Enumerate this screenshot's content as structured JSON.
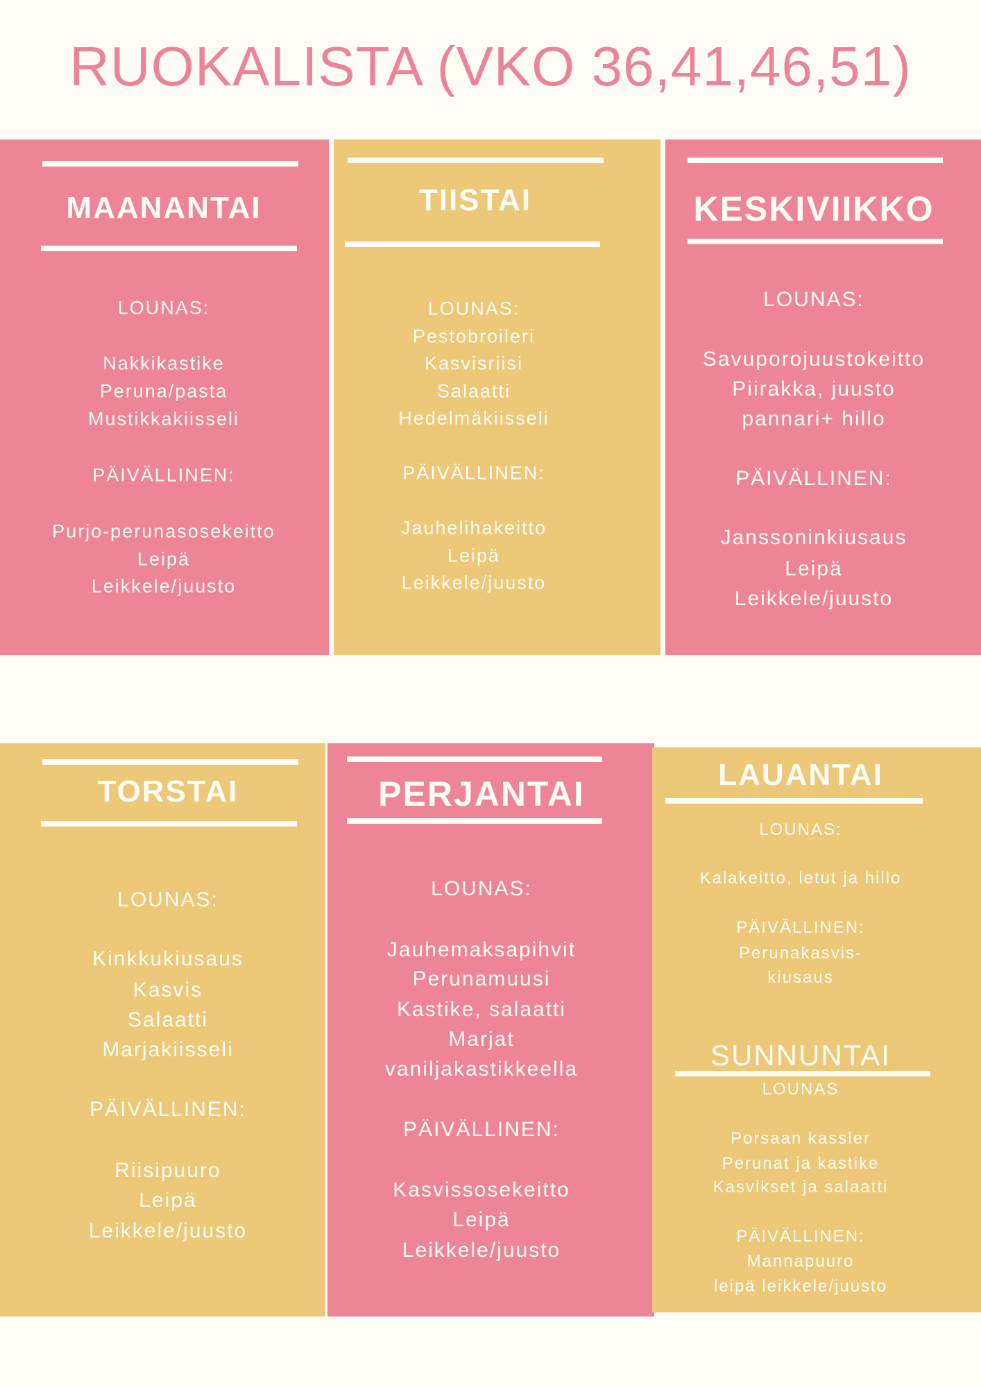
{
  "title": "RUOKALISTA (VKO 36,41,46,51)",
  "colors": {
    "pink": "#ED8597",
    "yellow": "#ECC878",
    "background": "#FEFDF5",
    "text": "#FEFDF5"
  },
  "days": [
    {
      "name": "MAANANTAI",
      "lunch_label": "LOUNAS:",
      "lunch": [
        "Nakkikastike",
        "Peruna/pasta",
        "Mustikkakiisseli"
      ],
      "dinner_label": "PÄIVÄLLINEN:",
      "dinner": [
        "Purjo-perunasosekeitto",
        "Leipä",
        "Leikkele/juusto"
      ]
    },
    {
      "name": "TIISTAI",
      "lunch_label": "LOUNAS:",
      "lunch": [
        "Pestobroileri",
        "Kasvisriisi",
        "Salaatti",
        "Hedelmäkiisseli"
      ],
      "dinner_label": "PÄIVÄLLINEN:",
      "dinner": [
        "Jauhelihakeitto",
        "Leipä",
        "Leikkele/juusto"
      ]
    },
    {
      "name": "KESKIVIIKKO",
      "lunch_label": "LOUNAS:",
      "lunch": [
        "Savuporojuustokeitto",
        "Piirakka, juusto",
        "pannari+ hillo"
      ],
      "dinner_label": "PÄIVÄLLINEN:",
      "dinner": [
        "Janssoninkiusaus",
        "Leipä",
        "Leikkele/juusto"
      ]
    },
    {
      "name": "TORSTAI",
      "lunch_label": "LOUNAS:",
      "lunch": [
        "Kinkkukiusaus",
        "Kasvis",
        "Salaatti",
        "Marjakiisseli"
      ],
      "dinner_label": "PÄIVÄLLINEN:",
      "dinner": [
        "Riisipuuro",
        "Leipä",
        "Leikkele/juusto"
      ]
    },
    {
      "name": "PERJANTAI",
      "lunch_label": "LOUNAS:",
      "lunch": [
        "Jauhemaksapihvit",
        "Perunamuusi",
        "Kastike, salaatti",
        "Marjat",
        "vaniljakastikkeella"
      ],
      "dinner_label": "PÄIVÄLLINEN:",
      "dinner": [
        "Kasvissosekeitto",
        "Leipä",
        "Leikkele/juusto"
      ]
    },
    {
      "name": "LAUANTAI",
      "lunch_label": "LOUNAS:",
      "lunch": [
        "Kalakeitto, letut ja hillo"
      ],
      "dinner_label": "PÄIVÄLLINEN:",
      "dinner": [
        "Perunakasvis-",
        "kiusaus"
      ]
    },
    {
      "name": "SUNNUNTAI",
      "lunch_label": "LOUNAS",
      "lunch": [
        "Porsaan kassler",
        "Perunat ja kastike",
        "Kasvikset ja salaatti"
      ],
      "dinner_label": "PÄIVÄLLINEN:",
      "dinner": [
        "Mannapuuro",
        "leipä leikkele/juusto"
      ]
    }
  ]
}
